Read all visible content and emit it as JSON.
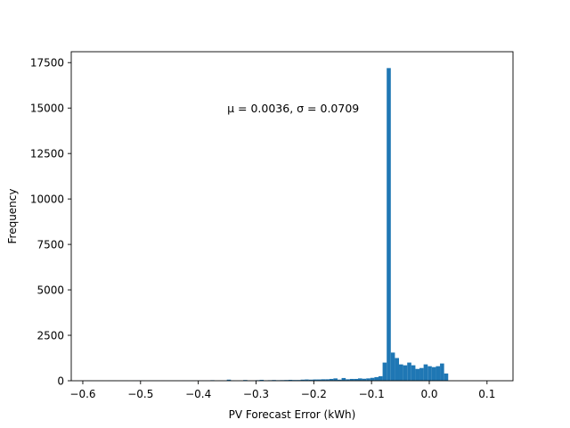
{
  "chart_data": {
    "type": "bar",
    "subtype": "histogram",
    "xlabel": "PV Forecast Error (kWh)",
    "ylabel": "Frequency",
    "xlim": [
      -0.62,
      0.145
    ],
    "ylim": [
      0,
      18100
    ],
    "xticks": [
      -0.6,
      -0.5,
      -0.4,
      -0.3,
      -0.2,
      -0.1,
      0.0,
      0.1
    ],
    "xtick_labels": [
      "−0.6",
      "−0.5",
      "−0.4",
      "−0.3",
      "−0.2",
      "−0.1",
      "0.0",
      "0.1"
    ],
    "yticks": [
      0,
      2500,
      5000,
      7500,
      10000,
      12500,
      15000,
      17500
    ],
    "ytick_labels": [
      "0",
      "2500",
      "5000",
      "7500",
      "10000",
      "12500",
      "15000",
      "17500"
    ],
    "bin_start": -0.592,
    "bin_width": 0.0071,
    "counts": [
      5,
      3,
      3,
      4,
      3,
      5,
      4,
      2,
      5,
      4,
      3,
      4,
      6,
      5,
      3,
      4,
      5,
      4,
      6,
      5,
      4,
      5,
      5,
      6,
      5,
      5,
      5,
      6,
      8,
      6,
      30,
      10,
      12,
      8,
      60,
      15,
      10,
      10,
      40,
      12,
      10,
      30,
      50,
      20,
      30,
      40,
      30,
      35,
      40,
      50,
      40,
      40,
      60,
      70,
      60,
      70,
      70,
      80,
      80,
      100,
      130,
      60,
      150,
      80,
      100,
      100,
      130,
      110,
      130,
      160,
      200,
      250,
      1000,
      17200,
      1550,
      1250,
      900,
      850,
      1000,
      850,
      650,
      700,
      900,
      800,
      750,
      800,
      950,
      400
    ],
    "annotation": "μ = 0.0036,  σ = 0.0709",
    "annotation_position": [
      -0.35,
      15000
    ],
    "bar_color": "#1f77b4",
    "grid": false,
    "legend": "none"
  }
}
